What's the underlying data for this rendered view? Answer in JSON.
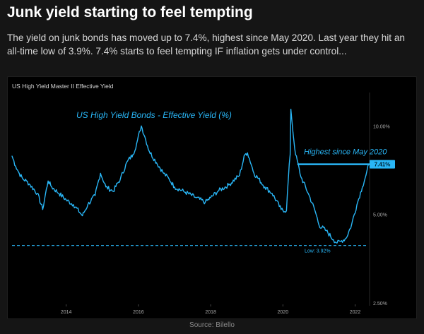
{
  "header": {
    "title": "Junk yield starting to feel tempting",
    "subtitle": "The yield on junk bonds has moved up to 7.4%, highest since May 2020. Last year they hit an all-time low of 3.9%. 7.4% starts to feel tempting IF inflation gets under control..."
  },
  "footer": {
    "source": "Source: Bilello"
  },
  "colors": {
    "line": "#29b6f6",
    "background": "#000000",
    "low_line": "#29b6f6"
  },
  "chart_data": {
    "type": "line",
    "panel_title": "US High Yield Master II Effective Yield",
    "title": "US High Yield Bonds - Effective Yield (%)",
    "xlabel": "",
    "ylabel": "",
    "x_ticks": [
      "2014",
      "2016",
      "2018",
      "2020",
      "2022"
    ],
    "y_ticks": [
      "10.00%",
      "7.50%",
      "5.00%",
      "2.50%"
    ],
    "y_scale": "log",
    "xlim": [
      2012.5,
      2022.4
    ],
    "ylim": [
      2.5,
      13
    ],
    "grid": false,
    "annotations": [
      {
        "text": "Highest since May 2020",
        "x": 2020.4,
        "y": 7.41
      },
      {
        "text": "7.41%",
        "y": 7.41
      },
      {
        "text": "Low: 3.92%",
        "y": 3.92
      }
    ],
    "series": [
      {
        "name": "",
        "points": [
          [
            2012.5,
            7.9
          ],
          [
            2012.6,
            7.3
          ],
          [
            2012.7,
            6.9
          ],
          [
            2012.8,
            6.6
          ],
          [
            2012.9,
            6.5
          ],
          [
            2013.0,
            6.3
          ],
          [
            2013.2,
            5.9
          ],
          [
            2013.35,
            5.2
          ],
          [
            2013.5,
            6.5
          ],
          [
            2013.6,
            6.2
          ],
          [
            2013.8,
            5.9
          ],
          [
            2014.0,
            5.6
          ],
          [
            2014.2,
            5.4
          ],
          [
            2014.45,
            4.95
          ],
          [
            2014.6,
            5.4
          ],
          [
            2014.8,
            5.8
          ],
          [
            2014.95,
            6.9
          ],
          [
            2015.1,
            6.2
          ],
          [
            2015.3,
            6.0
          ],
          [
            2015.5,
            6.6
          ],
          [
            2015.7,
            7.6
          ],
          [
            2015.85,
            8.0
          ],
          [
            2015.95,
            8.7
          ],
          [
            2016.08,
            10.0
          ],
          [
            2016.2,
            9.0
          ],
          [
            2016.3,
            8.2
          ],
          [
            2016.5,
            7.5
          ],
          [
            2016.7,
            6.9
          ],
          [
            2016.85,
            6.6
          ],
          [
            2017.0,
            6.2
          ],
          [
            2017.3,
            5.95
          ],
          [
            2017.6,
            5.7
          ],
          [
            2017.85,
            5.5
          ],
          [
            2018.0,
            5.7
          ],
          [
            2018.2,
            6.0
          ],
          [
            2018.5,
            6.3
          ],
          [
            2018.8,
            6.8
          ],
          [
            2018.95,
            8.0
          ],
          [
            2019.02,
            8.1
          ],
          [
            2019.2,
            6.9
          ],
          [
            2019.5,
            6.2
          ],
          [
            2019.7,
            5.9
          ],
          [
            2019.95,
            5.2
          ],
          [
            2020.1,
            5.15
          ],
          [
            2020.2,
            8.0
          ],
          [
            2020.22,
            11.4
          ],
          [
            2020.28,
            9.5
          ],
          [
            2020.35,
            8.0
          ],
          [
            2020.5,
            6.7
          ],
          [
            2020.7,
            5.9
          ],
          [
            2020.9,
            5.1
          ],
          [
            2021.0,
            4.6
          ],
          [
            2021.2,
            4.4
          ],
          [
            2021.4,
            4.1
          ],
          [
            2021.5,
            4.0
          ],
          [
            2021.6,
            4.05
          ],
          [
            2021.75,
            4.15
          ],
          [
            2021.9,
            4.6
          ],
          [
            2022.05,
            5.4
          ],
          [
            2022.2,
            6.2
          ],
          [
            2022.3,
            6.8
          ],
          [
            2022.38,
            7.41
          ]
        ]
      }
    ]
  }
}
